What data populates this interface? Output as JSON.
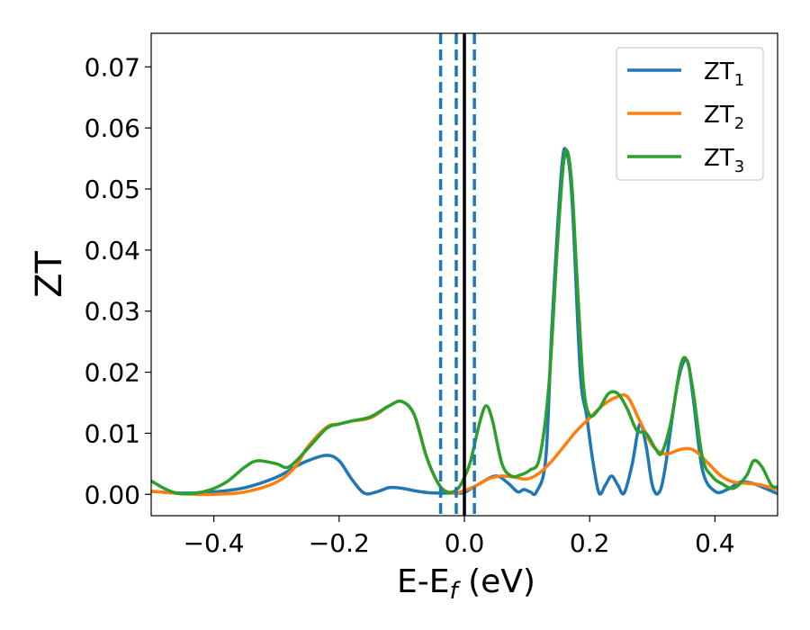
{
  "chart_data": {
    "type": "line",
    "xlabel": {
      "main": "E-E",
      "sub": "f",
      "unit": " (eV)"
    },
    "ylabel": "ZT",
    "xlim": [
      -0.5,
      0.5
    ],
    "ylim": [
      -0.0035,
      0.0755
    ],
    "xticks": [
      -0.4,
      -0.2,
      0.0,
      0.2,
      0.4
    ],
    "xtick_labels": [
      "−0.4",
      "−0.2",
      "0.0",
      "0.2",
      "0.4"
    ],
    "yticks": [
      0.0,
      0.01,
      0.02,
      0.03,
      0.04,
      0.05,
      0.06,
      0.07
    ],
    "ytick_labels": [
      "0.00",
      "0.01",
      "0.02",
      "0.03",
      "0.04",
      "0.05",
      "0.06",
      "0.07"
    ],
    "grid": false,
    "legend_position": "upper right",
    "vertical_lines": [
      {
        "x": -0.038,
        "style": "dashed",
        "color": "#1f77b4"
      },
      {
        "x": -0.013,
        "style": "dashed",
        "color": "#1f77b4"
      },
      {
        "x": 0.016,
        "style": "dashed",
        "color": "#1f77b4"
      },
      {
        "x": 0.0,
        "style": "solid",
        "color": "#000000"
      }
    ],
    "series": [
      {
        "name": "ZT",
        "sub": "1",
        "color": "#1f77b4",
        "points": [
          [
            -0.5,
            0.0005
          ],
          [
            -0.45,
            0.0002
          ],
          [
            -0.4,
            0.0004
          ],
          [
            -0.35,
            0.0011
          ],
          [
            -0.3,
            0.0028
          ],
          [
            -0.27,
            0.0045
          ],
          [
            -0.25,
            0.0055
          ],
          [
            -0.22,
            0.0064
          ],
          [
            -0.2,
            0.0055
          ],
          [
            -0.18,
            0.0025
          ],
          [
            -0.16,
            0.0002
          ],
          [
            -0.14,
            0.0004
          ],
          [
            -0.12,
            0.0011
          ],
          [
            -0.1,
            0.001
          ],
          [
            -0.08,
            0.0006
          ],
          [
            -0.06,
            0.0003
          ],
          [
            -0.04,
            0.0002
          ],
          [
            -0.025,
            0.0002
          ],
          [
            -0.01,
            0.0002
          ],
          [
            0.0,
            0.0003
          ],
          [
            0.02,
            0.0015
          ],
          [
            0.05,
            0.003
          ],
          [
            0.07,
            0.0018
          ],
          [
            0.085,
            0.0004
          ],
          [
            0.095,
            0.0008
          ],
          [
            0.105,
            0.0004
          ],
          [
            0.115,
            0.0004
          ],
          [
            0.13,
            0.006
          ],
          [
            0.14,
            0.028
          ],
          [
            0.155,
            0.053
          ],
          [
            0.163,
            0.056
          ],
          [
            0.172,
            0.048
          ],
          [
            0.185,
            0.02
          ],
          [
            0.195,
            0.013
          ],
          [
            0.205,
            0.0055
          ],
          [
            0.215,
            0.0002
          ],
          [
            0.225,
            0.0015
          ],
          [
            0.235,
            0.003
          ],
          [
            0.245,
            0.0015
          ],
          [
            0.255,
            0.0002
          ],
          [
            0.268,
            0.005
          ],
          [
            0.28,
            0.0115
          ],
          [
            0.29,
            0.008
          ],
          [
            0.3,
            0.0015
          ],
          [
            0.31,
            0.0002
          ],
          [
            0.32,
            0.004
          ],
          [
            0.34,
            0.018
          ],
          [
            0.355,
            0.022
          ],
          [
            0.365,
            0.016
          ],
          [
            0.38,
            0.004
          ],
          [
            0.4,
            0.0005
          ],
          [
            0.42,
            0.0008
          ],
          [
            0.44,
            0.002
          ],
          [
            0.46,
            0.0018
          ],
          [
            0.48,
            0.001
          ],
          [
            0.5,
            0.0001
          ]
        ]
      },
      {
        "name": "ZT",
        "sub": "2",
        "color": "#ff7f0e",
        "points": [
          [
            -0.5,
            0.0005
          ],
          [
            -0.45,
            0.0001
          ],
          [
            -0.4,
            0.0
          ],
          [
            -0.35,
            0.0004
          ],
          [
            -0.3,
            0.002
          ],
          [
            -0.27,
            0.0045
          ],
          [
            -0.25,
            0.0078
          ],
          [
            -0.22,
            0.011
          ],
          [
            -0.2,
            0.0115
          ],
          [
            -0.18,
            0.012
          ],
          [
            -0.15,
            0.0125
          ],
          [
            -0.12,
            0.0145
          ],
          [
            -0.1,
            0.0152
          ],
          [
            -0.08,
            0.013
          ],
          [
            -0.06,
            0.006
          ],
          [
            -0.04,
            0.0015
          ],
          [
            -0.02,
            0.0002
          ],
          [
            0.0,
            0.0006
          ],
          [
            0.02,
            0.0015
          ],
          [
            0.04,
            0.0026
          ],
          [
            0.06,
            0.003
          ],
          [
            0.08,
            0.0028
          ],
          [
            0.1,
            0.0025
          ],
          [
            0.12,
            0.0035
          ],
          [
            0.14,
            0.0055
          ],
          [
            0.16,
            0.008
          ],
          [
            0.18,
            0.0105
          ],
          [
            0.2,
            0.0125
          ],
          [
            0.22,
            0.0145
          ],
          [
            0.24,
            0.0158
          ],
          [
            0.26,
            0.016
          ],
          [
            0.28,
            0.012
          ],
          [
            0.3,
            0.008
          ],
          [
            0.32,
            0.0066
          ],
          [
            0.34,
            0.0072
          ],
          [
            0.355,
            0.0075
          ],
          [
            0.37,
            0.007
          ],
          [
            0.39,
            0.005
          ],
          [
            0.41,
            0.003
          ],
          [
            0.43,
            0.002
          ],
          [
            0.45,
            0.0018
          ],
          [
            0.47,
            0.0016
          ],
          [
            0.5,
            0.0008
          ]
        ]
      },
      {
        "name": "ZT",
        "sub": "3",
        "color": "#2ca02c",
        "points": [
          [
            -0.5,
            0.0022
          ],
          [
            -0.48,
            0.001
          ],
          [
            -0.46,
            0.0002
          ],
          [
            -0.44,
            0.0001
          ],
          [
            -0.41,
            0.0006
          ],
          [
            -0.38,
            0.002
          ],
          [
            -0.35,
            0.0045
          ],
          [
            -0.33,
            0.0055
          ],
          [
            -0.3,
            0.005
          ],
          [
            -0.28,
            0.0045
          ],
          [
            -0.25,
            0.0075
          ],
          [
            -0.22,
            0.0108
          ],
          [
            -0.2,
            0.0115
          ],
          [
            -0.18,
            0.012
          ],
          [
            -0.15,
            0.0127
          ],
          [
            -0.12,
            0.0145
          ],
          [
            -0.1,
            0.0152
          ],
          [
            -0.08,
            0.013
          ],
          [
            -0.06,
            0.006
          ],
          [
            -0.04,
            0.0015
          ],
          [
            -0.025,
            0.0003
          ],
          [
            -0.01,
            0.001
          ],
          [
            0.0,
            0.0028
          ],
          [
            0.01,
            0.0055
          ],
          [
            0.025,
            0.012
          ],
          [
            0.035,
            0.0145
          ],
          [
            0.045,
            0.012
          ],
          [
            0.06,
            0.005
          ],
          [
            0.075,
            0.003
          ],
          [
            0.09,
            0.0032
          ],
          [
            0.105,
            0.004
          ],
          [
            0.12,
            0.006
          ],
          [
            0.135,
            0.018
          ],
          [
            0.148,
            0.04
          ],
          [
            0.158,
            0.054
          ],
          [
            0.165,
            0.056
          ],
          [
            0.172,
            0.05
          ],
          [
            0.18,
            0.035
          ],
          [
            0.19,
            0.018
          ],
          [
            0.2,
            0.013
          ],
          [
            0.215,
            0.014
          ],
          [
            0.23,
            0.0165
          ],
          [
            0.245,
            0.0165
          ],
          [
            0.26,
            0.014
          ],
          [
            0.275,
            0.0105
          ],
          [
            0.29,
            0.01
          ],
          [
            0.305,
            0.0075
          ],
          [
            0.315,
            0.0068
          ],
          [
            0.33,
            0.012
          ],
          [
            0.345,
            0.021
          ],
          [
            0.355,
            0.022
          ],
          [
            0.365,
            0.017
          ],
          [
            0.38,
            0.006
          ],
          [
            0.395,
            0.003
          ],
          [
            0.41,
            0.0018
          ],
          [
            0.43,
            0.001
          ],
          [
            0.45,
            0.003
          ],
          [
            0.462,
            0.0055
          ],
          [
            0.475,
            0.0045
          ],
          [
            0.49,
            0.0015
          ],
          [
            0.5,
            0.0012
          ]
        ]
      }
    ]
  }
}
